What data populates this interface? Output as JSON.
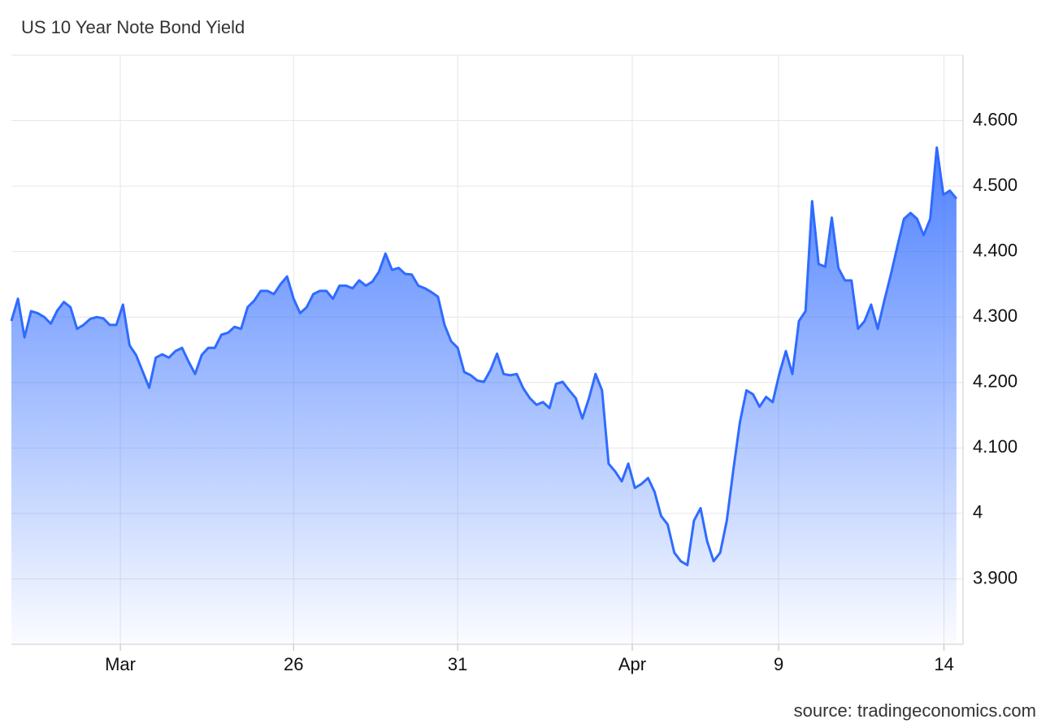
{
  "chart_data": {
    "type": "area",
    "title": "US 10 Year Note Bond Yield",
    "source": "source: tradingeconomics.com",
    "color": "#2f6bff",
    "values": [
      4.294,
      4.328,
      4.269,
      4.309,
      4.306,
      4.3,
      4.29,
      4.31,
      4.323,
      4.315,
      4.282,
      4.288,
      4.297,
      4.3,
      4.298,
      4.288,
      4.288,
      4.319,
      4.257,
      4.242,
      4.217,
      4.192,
      4.238,
      4.243,
      4.238,
      4.248,
      4.253,
      4.232,
      4.213,
      4.242,
      4.253,
      4.253,
      4.273,
      4.276,
      4.285,
      4.282,
      4.315,
      4.325,
      4.34,
      4.34,
      4.335,
      4.35,
      4.362,
      4.328,
      4.306,
      4.315,
      4.335,
      4.34,
      4.34,
      4.328,
      4.348,
      4.348,
      4.344,
      4.356,
      4.348,
      4.354,
      4.369,
      4.397,
      4.372,
      4.375,
      4.366,
      4.365,
      4.348,
      4.344,
      4.338,
      4.331,
      4.288,
      4.263,
      4.253,
      4.216,
      4.211,
      4.203,
      4.201,
      4.219,
      4.244,
      4.213,
      4.211,
      4.213,
      4.191,
      4.176,
      4.166,
      4.17,
      4.161,
      4.198,
      4.201,
      4.188,
      4.176,
      4.145,
      4.176,
      4.213,
      4.188,
      4.076,
      4.064,
      4.049,
      4.076,
      4.039,
      4.045,
      4.054,
      4.033,
      3.996,
      3.983,
      3.94,
      3.927,
      3.921,
      3.989,
      4.008,
      3.958,
      3.927,
      3.94,
      3.989,
      4.066,
      4.139,
      4.188,
      4.182,
      4.163,
      4.178,
      4.17,
      4.213,
      4.248,
      4.213,
      4.294,
      4.309,
      4.477,
      4.381,
      4.377,
      4.452,
      4.375,
      4.356,
      4.356,
      4.282,
      4.294,
      4.319,
      4.282,
      4.325,
      4.365,
      4.408,
      4.45,
      4.459,
      4.45,
      4.425,
      4.45,
      4.559,
      4.487,
      4.493,
      4.481
    ],
    "xlim": [
      0,
      145
    ],
    "xticks": [
      {
        "value": 16.6,
        "label": "Mar"
      },
      {
        "value": 43,
        "label": "26"
      },
      {
        "value": 68,
        "label": "31"
      },
      {
        "value": 94.6,
        "label": "Apr"
      },
      {
        "value": 116.9,
        "label": "9"
      },
      {
        "value": 142.1,
        "label": "14"
      }
    ],
    "ylim": [
      3.8,
      4.7
    ],
    "yticks": [
      {
        "value": 3.9,
        "label": "3.900"
      },
      4,
      {
        "value": 4.1,
        "label": "4.100"
      },
      {
        "value": 4.2,
        "label": "4.200"
      },
      {
        "value": 4.3,
        "label": "4.300"
      },
      {
        "value": 4.4,
        "label": "4.400"
      },
      {
        "value": 4.5,
        "label": "4.500"
      },
      {
        "value": 4.6,
        "label": "4.600"
      }
    ],
    "grid": true
  }
}
